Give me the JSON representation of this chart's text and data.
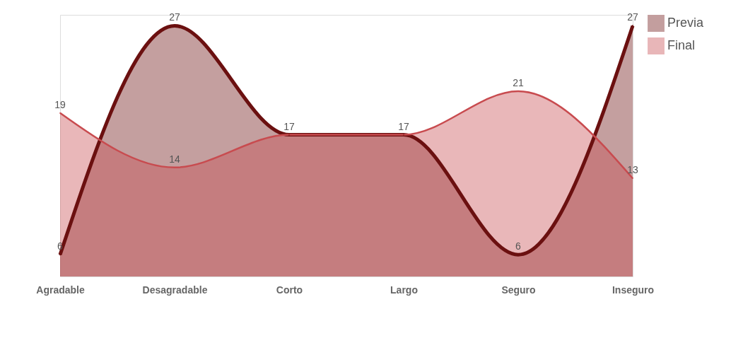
{
  "chart_data": {
    "type": "area",
    "categories": [
      "Agradable",
      "Desagradable",
      "Corto",
      "Largo",
      "Seguro",
      "Inseguro"
    ],
    "series": [
      {
        "name": "Previa",
        "color": "#6b1010",
        "values": [
          6,
          27,
          17,
          17,
          6,
          27
        ],
        "value_labels": [
          "6",
          "27",
          "17",
          "17",
          "6",
          "27"
        ]
      },
      {
        "name": "Final",
        "color": "#c84b4f",
        "values": [
          19,
          14,
          17,
          17,
          21,
          13
        ],
        "value_labels": [
          "19",
          "14",
          null,
          null,
          "21",
          "13"
        ]
      }
    ],
    "ylim": [
      4,
      28
    ],
    "legend": "right",
    "grid": false
  }
}
